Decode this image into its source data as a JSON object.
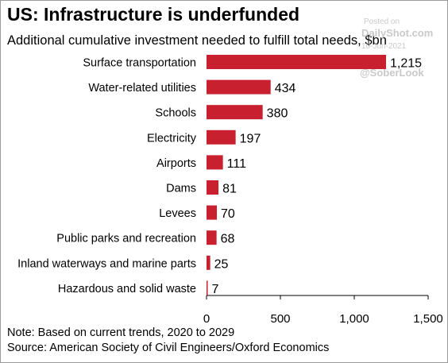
{
  "header": {
    "title": "US: Infrastructure is underfunded",
    "subtitle": "Additional cumulative investment needed to fulfill total needs, $bn"
  },
  "watermark": {
    "posted": "Posted on",
    "site": "DailyShot.com",
    "date": "10-Jun-2021",
    "handle": "@SoberLook"
  },
  "footer": {
    "note": "Note: Based on current trends, 2020 to 2029",
    "source": "Source: American Society of Civil Engineers/Oxford Economics"
  },
  "chart_data": {
    "type": "bar",
    "orientation": "horizontal",
    "categories": [
      "Surface transportation",
      "Water-related utilities",
      "Schools",
      "Electricity",
      "Airports",
      "Dams",
      "Levees",
      "Public parks and recreation",
      "Inland waterways and marine parts",
      "Hazardous and solid waste"
    ],
    "values": [
      1215,
      434,
      380,
      197,
      111,
      81,
      70,
      68,
      25,
      7
    ],
    "value_labels": [
      "1,215",
      "434",
      "380",
      "197",
      "111",
      "81",
      "70",
      "68",
      "25",
      "7"
    ],
    "xlim": [
      0,
      1500
    ],
    "xticks": [
      0,
      500,
      1000,
      1500
    ],
    "xtick_labels": [
      "0",
      "500",
      "1,000",
      "1,500"
    ],
    "grid": false,
    "bar_color": "#c8202f"
  }
}
